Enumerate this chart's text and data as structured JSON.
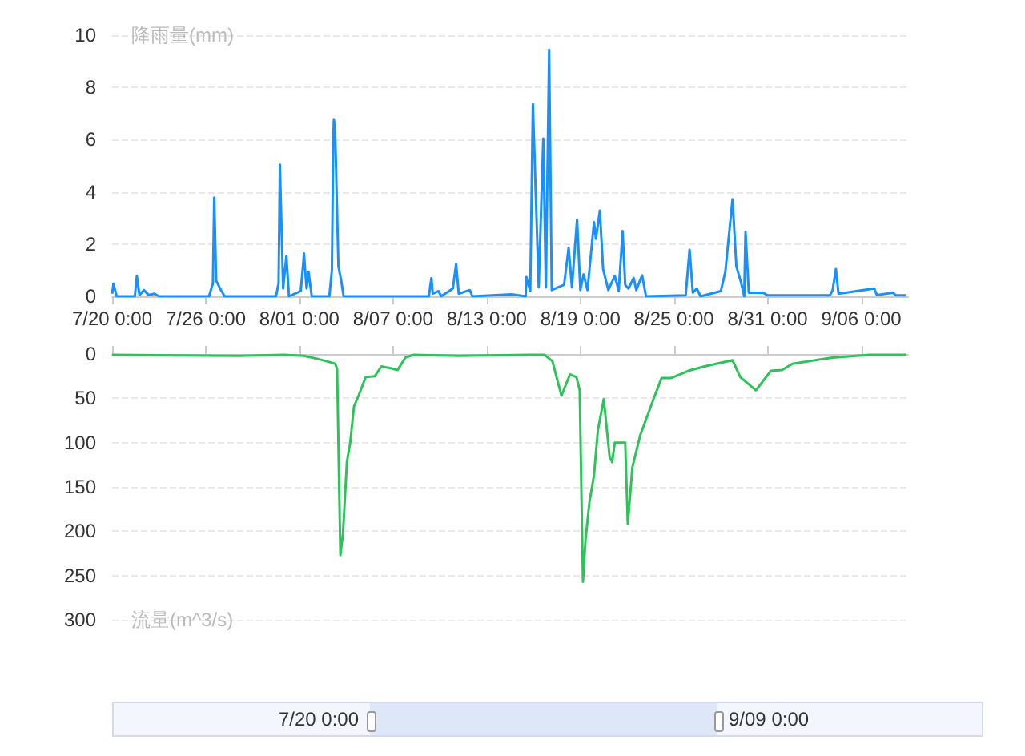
{
  "chart_data": [
    {
      "type": "line",
      "ylabel": "降雨量(mm)",
      "xlim": [
        "--07-20T00:00",
        "--09-09T00:00"
      ],
      "xticks": [
        {
          "value": "--07-20",
          "label": "7/20 0:00"
        },
        {
          "value": "--07-26",
          "label": "7/26 0:00"
        },
        {
          "value": "--08-01",
          "label": "8/01 0:00"
        },
        {
          "value": "--08-07",
          "label": "8/07 0:00"
        },
        {
          "value": "--08-13",
          "label": "8/13 0:00"
        },
        {
          "value": "--08-19",
          "label": "8/19 0:00"
        },
        {
          "value": "--08-25",
          "label": "8/25 0:00"
        },
        {
          "value": "--08-31",
          "label": "8/31 0:00"
        },
        {
          "value": "--09-06",
          "label": "9/06 0:00"
        }
      ],
      "ylim": [
        0,
        10
      ],
      "yticks": [
        0,
        2,
        4,
        6,
        8,
        10
      ],
      "grid": "y",
      "marker": "none",
      "line_style": "solid",
      "series": [
        {
          "color": "#1890ff",
          "x": [
            "--07-20T00:00",
            "--07-20T02:00",
            "--07-20T07:00",
            "--07-21T11:00",
            "--07-21T14:00",
            "--07-21T18:00",
            "--07-22T01:00",
            "--07-22T08:00",
            "--07-22T17:00",
            "--07-23T00:00",
            "--07-26T05:00",
            "--07-26T11:00",
            "--07-26T13:00",
            "--07-26T16:00",
            "--07-26T22:00",
            "--07-27T05:00",
            "--07-30T12:00",
            "--07-30T16:00",
            "--07-30T18:00",
            "--07-30T23:00",
            "--07-31T04:00",
            "--07-31T08:00",
            "--08-01T02:00",
            "--08-01T06:00",
            "--08-01T07:00",
            "--08-01T11:00",
            "--08-01T14:00",
            "--08-01T19:00",
            "--08-02T22:00",
            "--08-03T02:00",
            "--08-03T04:00",
            "--08-03T05:00",
            "--08-03T07:00",
            "--08-03T09:00",
            "--08-03T12:00",
            "--08-03T16:00",
            "--08-03T20:00",
            "--08-09T07:00",
            "--08-09T11:00",
            "--08-09T13:00",
            "--08-09T22:00",
            "--08-10T02:00",
            "--08-10T20:00",
            "--08-11T01:00",
            "--08-11T05:00",
            "--08-11T22:00",
            "--08-12T02:00",
            "--08-14T14:00",
            "--08-15T12:00",
            "--08-15T13:00",
            "--08-15T19:00",
            "--08-15T23:00",
            "--08-16T08:00",
            "--08-16T15:00",
            "--08-16T19:00",
            "--08-17T00:00",
            "--08-17T04:00",
            "--08-17T23:00",
            "--08-18T06:00",
            "--08-18T11:00",
            "--08-18T19:00",
            "--08-19T00:00",
            "--08-19T05:00",
            "--08-19T11:00",
            "--08-19T21:00",
            "--08-20T00:00",
            "--08-20T06:00",
            "--08-20T11:00",
            "--08-20T19:00",
            "--08-21T05:00",
            "--08-21T11:00",
            "--08-21T17:00",
            "--08-21T21:00",
            "--08-22T02:00",
            "--08-22T10:00",
            "--08-22T14:00",
            "--08-22T23:00",
            "--08-23T05:00",
            "--08-25T18:00",
            "--08-26T00:00",
            "--08-26T05:00",
            "--08-26T11:00",
            "--08-26T17:00",
            "--08-28T00:00",
            "--08-28T07:00",
            "--08-28T18:00",
            "--08-29T00:00",
            "--08-29T07:00",
            "--08-29T12:00",
            "--08-29T14:00",
            "--08-29T19:00",
            "--08-30T17:00",
            "--08-31T00:00",
            "--09-04T00:00",
            "--09-04T04:00",
            "--09-04T09:00",
            "--09-04T13:00",
            "--09-06T20:00",
            "--09-07T00:00",
            "--09-08T01:00",
            "--09-08T05:00",
            "--09-08T21:00"
          ],
          "values": [
            0.1,
            0.48,
            0,
            0,
            0.78,
            0.05,
            0.24,
            0.05,
            0.1,
            0,
            0,
            0.5,
            3.78,
            0.6,
            0.3,
            0,
            0,
            0.5,
            5.04,
            0.3,
            1.54,
            0,
            0.2,
            1.3,
            1.64,
            0.3,
            0.94,
            0,
            0,
            1.0,
            6.0,
            6.78,
            6.34,
            4.24,
            1.14,
            0.64,
            0,
            0,
            0.7,
            0.1,
            0.2,
            0,
            0.3,
            1.24,
            0.1,
            0.24,
            0,
            0.08,
            0,
            0.74,
            0.2,
            7.38,
            0.34,
            6.04,
            0.34,
            9.44,
            0.24,
            0.44,
            1.86,
            0.34,
            2.94,
            0.24,
            0.84,
            0.24,
            2.84,
            2.2,
            3.28,
            1.04,
            0.24,
            0.78,
            0.2,
            2.5,
            0.44,
            0.3,
            0.7,
            0.24,
            0.8,
            0,
            0.04,
            1.78,
            0.14,
            0.3,
            0,
            0.2,
            0.94,
            3.72,
            1.14,
            0.54,
            0,
            2.48,
            0.14,
            0.14,
            0.04,
            0.04,
            0.24,
            1.04,
            0.1,
            0.3,
            0.05,
            0.14,
            0.04,
            0.04
          ]
        }
      ]
    },
    {
      "type": "line",
      "ylabel": "流量(m^3/s)",
      "xlim": [
        "--07-20T00:00",
        "--09-09T00:00"
      ],
      "xticks": [
        {
          "value": "--07-20",
          "label": null
        },
        {
          "value": "--07-26",
          "label": null
        },
        {
          "value": "--08-01",
          "label": null
        },
        {
          "value": "--08-07",
          "label": null
        },
        {
          "value": "--08-13",
          "label": null
        },
        {
          "value": "--08-19",
          "label": null
        },
        {
          "value": "--08-25",
          "label": null
        },
        {
          "value": "--08-31",
          "label": null
        },
        {
          "value": "--09-06",
          "label": null
        }
      ],
      "ylim": [
        300,
        0
      ],
      "yticks": [
        0,
        50,
        100,
        150,
        200,
        250,
        300
      ],
      "grid": "y",
      "marker": "none",
      "line_style": "solid",
      "tick_labels": "y",
      "annotations": [
        "7/20 0:00",
        "9/09 0:00"
      ],
      "series": [
        {
          "color": "#2fc25b",
          "x": [
            "--07-20T00:00",
            "--07-28T05:00",
            "--07-31T00:00",
            "--08-01T07:00",
            "--08-02T07:00",
            "--08-03T07:00",
            "--08-03T10:00",
            "--08-03T15:00",
            "--08-03T19:00",
            "--08-04T01:00",
            "--08-04T06:00",
            "--08-04T12:00",
            "--08-04T19:00",
            "--08-05T06:00",
            "--08-05T20:00",
            "--08-06T06:00",
            "--08-06T20:00",
            "--08-07T07:00",
            "--08-07T19:00",
            "--08-08T07:00",
            "--08-11T05:00",
            "--08-15T17:00",
            "--08-16T17:00",
            "--08-17T05:00",
            "--08-17T19:00",
            "--08-18T08:00",
            "--08-18T18:00",
            "--08-18T23:00",
            "--08-19T04:00",
            "--08-19T08:00",
            "--08-19T14:00",
            "--08-19T21:00",
            "--08-20T03:00",
            "--08-20T12:00",
            "--08-20T21:00",
            "--08-21T01:00",
            "--08-21T05:00",
            "--08-21T21:00",
            "--08-22T01:00",
            "--08-22T08:00",
            "--08-22T20:00",
            "--08-23T17:00",
            "--08-24T05:00",
            "--08-24T20:00",
            "--08-25T22:00",
            "--08-26T23:00",
            "--08-28T18:00",
            "--08-29T06:00",
            "--08-30T06:00",
            "--08-31T05:00",
            "--08-31T22:00",
            "--09-01T14:00",
            "--09-04T04:00",
            "--09-06T13:00",
            "--09-08T21:00"
          ],
          "values": [
            1,
            2,
            1,
            2,
            6,
            11,
            17,
            227,
            203,
            122,
            101,
            59,
            47,
            26,
            25,
            14,
            16,
            18,
            4,
            1,
            2,
            1,
            1,
            8,
            47,
            23,
            26,
            41,
            257,
            209,
            167,
            137,
            86,
            51,
            116,
            122,
            100,
            100,
            192,
            128,
            92,
            50,
            27,
            27,
            19,
            14,
            7,
            26,
            41,
            19,
            18,
            11,
            4,
            1,
            1
          ]
        }
      ]
    }
  ]
}
